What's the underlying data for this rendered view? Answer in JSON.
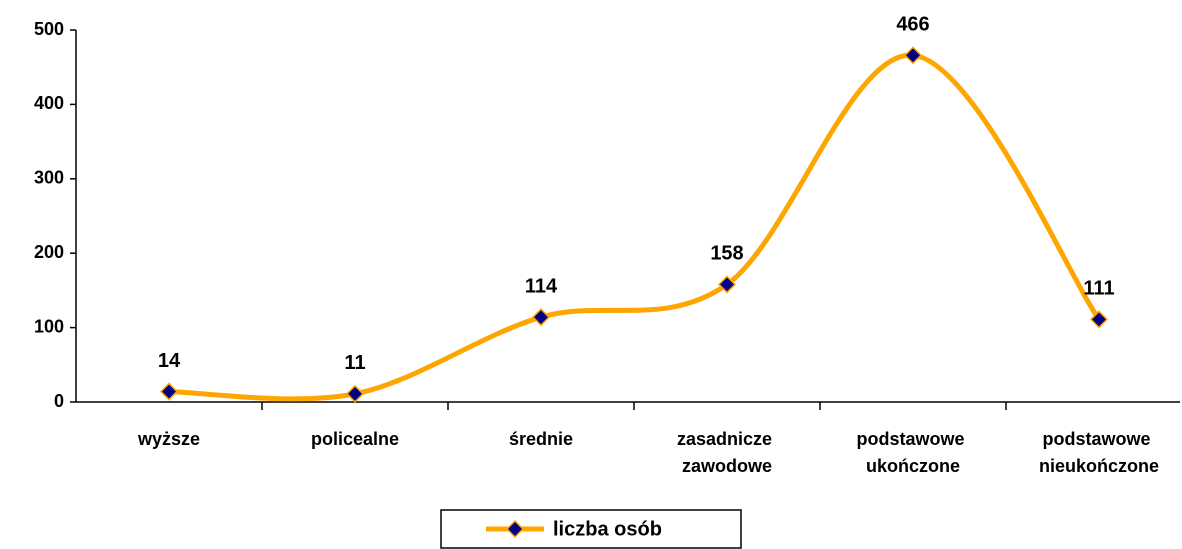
{
  "chart_data": {
    "type": "line",
    "categories": [
      "wyższe",
      "policealne",
      "średnie",
      "zasadnicze zawodowe",
      "podstawowe ukończone",
      "podstawowe nieukończone"
    ],
    "series": [
      {
        "name": "liczba osób",
        "color": "#ffa500",
        "marker_color": "#000080",
        "values": [
          14,
          11,
          114,
          158,
          466,
          111
        ]
      }
    ],
    "ylim": [
      0,
      500
    ],
    "yticks": [
      0,
      100,
      200,
      300,
      400,
      500
    ],
    "smooth": true,
    "legend": "bottom"
  }
}
